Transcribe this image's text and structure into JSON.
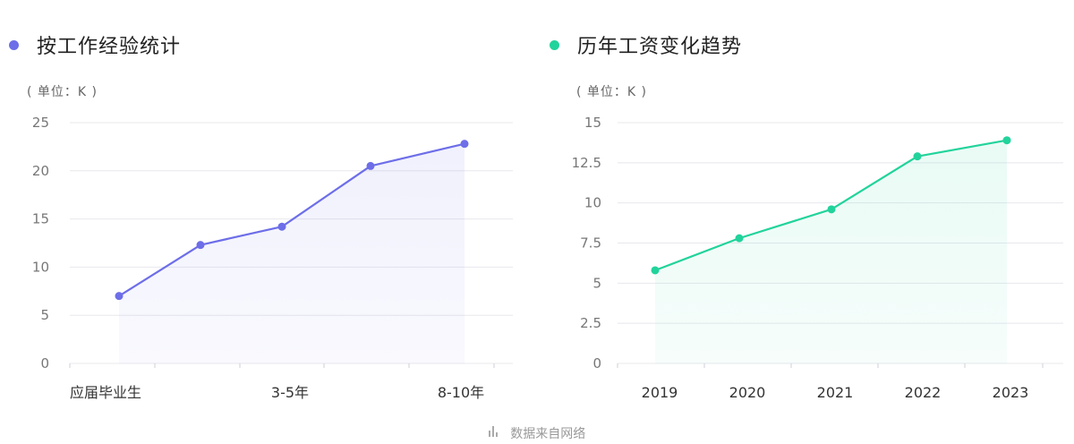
{
  "colors": {
    "left_accent": "#6d6ee8",
    "right_accent": "#22d39b",
    "grid": "#e8e8ee",
    "axis_text": "#777777"
  },
  "left": {
    "title": "按工作经验统计",
    "unit": "( 单位：K )"
  },
  "right": {
    "title": "历年工资变化趋势",
    "unit": "( 单位：K )"
  },
  "footer": {
    "text": "数据来自网络",
    "icon": "bar-chart-icon"
  },
  "chart_data": [
    {
      "type": "area",
      "title": "按工作经验统计",
      "ylabel": "( 单位：K )",
      "categories": [
        "应届毕业生",
        "",
        "3-5年",
        "",
        "8-10年"
      ],
      "values": [
        7.0,
        12.3,
        14.2,
        20.5,
        22.8
      ],
      "yticks": [
        "0",
        "5",
        "10",
        "15",
        "20",
        "25"
      ],
      "ylim": [
        0,
        25
      ],
      "grid": true
    },
    {
      "type": "area",
      "title": "历年工资变化趋势",
      "ylabel": "( 单位：K )",
      "categories": [
        "2019",
        "2020",
        "2021",
        "2022",
        "2023"
      ],
      "values": [
        5.8,
        7.8,
        9.6,
        12.9,
        13.9
      ],
      "yticks": [
        "0",
        "2.5",
        "5",
        "7.5",
        "10",
        "12.5",
        "15"
      ],
      "ylim": [
        0,
        15
      ],
      "grid": true
    }
  ]
}
